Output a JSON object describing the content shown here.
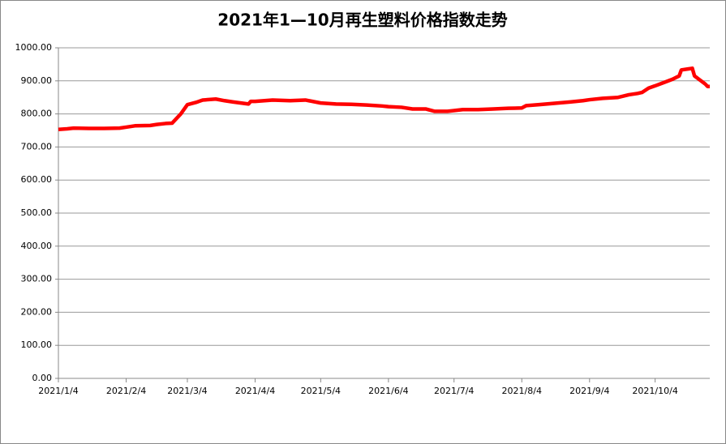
{
  "chart_data": {
    "type": "line",
    "title": "2021年1—10月再生塑料价格指数走势",
    "x": [
      "2021/1/4",
      "2021/1/8",
      "2021/1/11",
      "2021/1/18",
      "2021/1/25",
      "2021/2/1",
      "2021/2/4",
      "2021/2/8",
      "2021/2/15",
      "2021/2/18",
      "2021/2/22",
      "2021/2/25",
      "2021/3/1",
      "2021/3/4",
      "2021/3/8",
      "2021/3/11",
      "2021/3/17",
      "2021/3/21",
      "2021/3/25",
      "2021/4/1",
      "2021/4/2",
      "2021/4/4",
      "2021/4/12",
      "2021/4/20",
      "2021/4/27",
      "2021/5/4",
      "2021/5/11",
      "2021/5/18",
      "2021/5/25",
      "2021/6/1",
      "2021/6/4",
      "2021/6/10",
      "2021/6/15",
      "2021/6/21",
      "2021/6/25",
      "2021/7/1",
      "2021/7/4",
      "2021/7/8",
      "2021/7/15",
      "2021/7/22",
      "2021/7/29",
      "2021/8/4",
      "2021/8/6",
      "2021/8/12",
      "2021/8/19",
      "2021/8/26",
      "2021/9/1",
      "2021/9/4",
      "2021/9/10",
      "2021/9/17",
      "2021/9/22",
      "2021/9/26",
      "2021/9/28",
      "2021/10/1",
      "2021/10/4",
      "2021/10/8",
      "2021/10/12",
      "2021/10/15",
      "2021/10/16",
      "2021/10/19",
      "2021/10/21",
      "2021/10/22",
      "2021/10/24",
      "2021/10/26",
      "2021/10/27",
      "2021/10/28",
      "2021/10/29"
    ],
    "series": [
      {
        "name": "再生塑料价格指数",
        "color": "#ff0000",
        "values": [
          753,
          755,
          757,
          756,
          756,
          757,
          760,
          764,
          765,
          768,
          771,
          772,
          800,
          828,
          835,
          842,
          845,
          840,
          836,
          830,
          838,
          838,
          842,
          840,
          842,
          833,
          830,
          829,
          827,
          824,
          822,
          820,
          815,
          815,
          808,
          808,
          810,
          813,
          813,
          815,
          817,
          818,
          825,
          828,
          832,
          836,
          840,
          843,
          847,
          850,
          858,
          862,
          865,
          878,
          885,
          895,
          905,
          915,
          933,
          936,
          938,
          915,
          905,
          895,
          890,
          883,
          883
        ]
      }
    ],
    "xlim": [
      "2021/1/4",
      "2021/10/29"
    ],
    "xticks": [
      "2021/1/4",
      "2021/2/4",
      "2021/3/4",
      "2021/4/4",
      "2021/5/4",
      "2021/6/4",
      "2021/7/4",
      "2021/8/4",
      "2021/9/4",
      "2021/10/4"
    ],
    "ylim": [
      0,
      1000
    ],
    "yticks": [
      {
        "value": 0,
        "label": "0.00"
      },
      {
        "value": 100,
        "label": "100.00"
      },
      {
        "value": 200,
        "label": "200.00"
      },
      {
        "value": 300,
        "label": "300.00"
      },
      {
        "value": 400,
        "label": "400.00"
      },
      {
        "value": 500,
        "label": "500.00"
      },
      {
        "value": 600,
        "label": "600.00"
      },
      {
        "value": 700,
        "label": "700.00"
      },
      {
        "value": 800,
        "label": "800.00"
      },
      {
        "value": 900,
        "label": "900.00"
      },
      {
        "value": 1000,
        "label": "1000.00"
      }
    ],
    "grid": true
  }
}
